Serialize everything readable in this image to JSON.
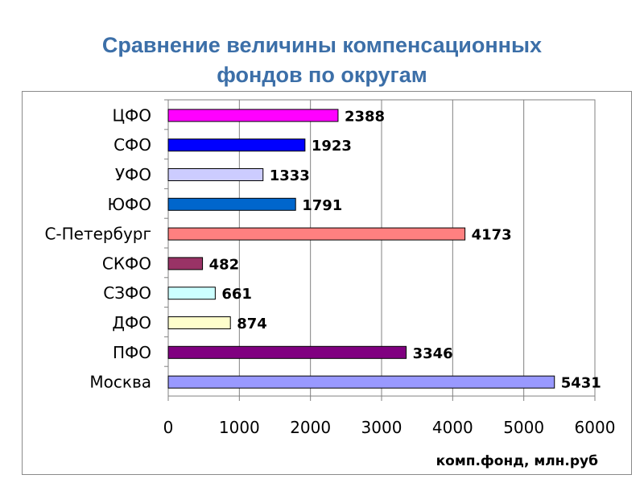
{
  "chart_data": {
    "type": "bar",
    "orientation": "horizontal",
    "title": "Сравнение величины компенсационных фондов по округам",
    "title_lines": [
      "Сравнение величины компенсационных",
      "фондов по округам"
    ],
    "xlabel": "комп.фонд, млн.руб",
    "ylabel": "",
    "categories": [
      "ЦФО",
      "СФО",
      "УФО",
      "ЮФО",
      "С-Петербург",
      "СКФО",
      "СЗФО",
      "ДФО",
      "ПФО",
      "Москва"
    ],
    "values": [
      2388,
      1923,
      1333,
      1791,
      4173,
      482,
      661,
      874,
      3346,
      5431
    ],
    "data_labels": [
      "2388",
      "1923",
      "1333",
      "1791",
      "4173",
      "482",
      "661",
      "874",
      "3346",
      "5431"
    ],
    "colors": [
      "#ff00ff",
      "#0000ff",
      "#ccccff",
      "#0066cc",
      "#ff8080",
      "#993366",
      "#ccffff",
      "#ffffcc",
      "#800080",
      "#9999ff"
    ],
    "xlim": [
      0,
      6000
    ],
    "xticks": [
      0,
      1000,
      2000,
      3000,
      4000,
      5000,
      6000
    ],
    "xtick_labels": [
      "0",
      "1000",
      "2000",
      "3000",
      "4000",
      "5000",
      "6000"
    ],
    "grid": "vertical",
    "legend": "none",
    "title_color": "#3c6fa8"
  }
}
